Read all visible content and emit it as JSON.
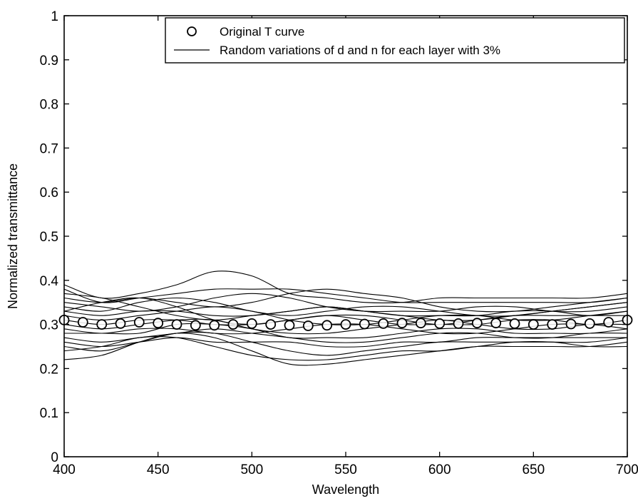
{
  "chart_data": {
    "type": "line",
    "title": "",
    "xlabel": "Wavelength",
    "ylabel": "Normalized transmittance",
    "xlim": [
      400,
      700
    ],
    "ylim": [
      0,
      1
    ],
    "xticks": [
      400,
      450,
      500,
      550,
      600,
      650,
      700
    ],
    "yticks": [
      0,
      0.1,
      0.2,
      0.3,
      0.4,
      0.5,
      0.6,
      0.7,
      0.8,
      0.9,
      1
    ],
    "xtick_labels": [
      "400",
      "450",
      "500",
      "550",
      "600",
      "650",
      "700"
    ],
    "ytick_labels": [
      "0",
      "0.1",
      "0.2",
      "0.3",
      "0.4",
      "0.5",
      "0.6",
      "0.7",
      "0.8",
      "0.9",
      "1"
    ],
    "grid": false,
    "legend_position": "top-right",
    "legend": [
      {
        "label": "Original T curve",
        "marker": "circle"
      },
      {
        "label": "Random variations of d and n for each layer with 3%",
        "marker": "line"
      }
    ],
    "x": [
      400,
      420,
      440,
      460,
      480,
      500,
      520,
      540,
      560,
      580,
      600,
      620,
      640,
      660,
      680,
      700
    ],
    "original": {
      "x": [
        400,
        410,
        420,
        430,
        440,
        450,
        460,
        470,
        480,
        490,
        500,
        510,
        520,
        530,
        540,
        550,
        560,
        570,
        580,
        590,
        600,
        610,
        620,
        630,
        640,
        650,
        660,
        670,
        680,
        690,
        700
      ],
      "values": [
        0.31,
        0.305,
        0.3,
        0.302,
        0.305,
        0.303,
        0.3,
        0.298,
        0.298,
        0.3,
        0.302,
        0.3,
        0.298,
        0.297,
        0.298,
        0.3,
        0.301,
        0.302,
        0.303,
        0.303,
        0.302,
        0.302,
        0.303,
        0.303,
        0.302,
        0.3,
        0.3,
        0.301,
        0.302,
        0.305,
        0.31
      ]
    },
    "variations": [
      [
        0.39,
        0.36,
        0.37,
        0.39,
        0.42,
        0.41,
        0.37,
        0.36,
        0.35,
        0.35,
        0.36,
        0.36,
        0.36,
        0.36,
        0.36,
        0.37
      ],
      [
        0.38,
        0.35,
        0.36,
        0.37,
        0.38,
        0.38,
        0.38,
        0.37,
        0.36,
        0.35,
        0.35,
        0.35,
        0.35,
        0.35,
        0.35,
        0.36
      ],
      [
        0.36,
        0.35,
        0.36,
        0.35,
        0.34,
        0.35,
        0.37,
        0.38,
        0.37,
        0.36,
        0.34,
        0.33,
        0.33,
        0.34,
        0.35,
        0.36
      ],
      [
        0.35,
        0.34,
        0.33,
        0.34,
        0.36,
        0.37,
        0.36,
        0.34,
        0.33,
        0.33,
        0.33,
        0.34,
        0.34,
        0.33,
        0.33,
        0.34
      ],
      [
        0.34,
        0.33,
        0.35,
        0.36,
        0.35,
        0.33,
        0.32,
        0.33,
        0.34,
        0.34,
        0.33,
        0.32,
        0.32,
        0.33,
        0.34,
        0.35
      ],
      [
        0.33,
        0.32,
        0.33,
        0.33,
        0.32,
        0.32,
        0.33,
        0.34,
        0.33,
        0.32,
        0.32,
        0.32,
        0.33,
        0.33,
        0.32,
        0.33
      ],
      [
        0.32,
        0.31,
        0.32,
        0.33,
        0.34,
        0.33,
        0.31,
        0.3,
        0.3,
        0.31,
        0.32,
        0.32,
        0.31,
        0.31,
        0.32,
        0.33
      ],
      [
        0.31,
        0.3,
        0.31,
        0.31,
        0.3,
        0.3,
        0.31,
        0.32,
        0.31,
        0.3,
        0.3,
        0.3,
        0.31,
        0.31,
        0.3,
        0.31
      ],
      [
        0.3,
        0.29,
        0.3,
        0.31,
        0.31,
        0.29,
        0.28,
        0.28,
        0.29,
        0.3,
        0.31,
        0.3,
        0.29,
        0.29,
        0.3,
        0.3
      ],
      [
        0.29,
        0.28,
        0.29,
        0.29,
        0.28,
        0.28,
        0.29,
        0.3,
        0.3,
        0.29,
        0.28,
        0.28,
        0.29,
        0.3,
        0.3,
        0.29
      ],
      [
        0.28,
        0.28,
        0.28,
        0.3,
        0.3,
        0.29,
        0.27,
        0.27,
        0.27,
        0.28,
        0.29,
        0.29,
        0.28,
        0.28,
        0.28,
        0.29
      ],
      [
        0.27,
        0.26,
        0.27,
        0.28,
        0.29,
        0.28,
        0.27,
        0.26,
        0.26,
        0.27,
        0.28,
        0.28,
        0.27,
        0.27,
        0.28,
        0.28
      ],
      [
        0.26,
        0.25,
        0.26,
        0.27,
        0.26,
        0.26,
        0.26,
        0.25,
        0.25,
        0.26,
        0.26,
        0.27,
        0.27,
        0.27,
        0.27,
        0.27
      ],
      [
        0.25,
        0.24,
        0.26,
        0.28,
        0.28,
        0.26,
        0.24,
        0.23,
        0.24,
        0.25,
        0.26,
        0.26,
        0.26,
        0.26,
        0.26,
        0.27
      ],
      [
        0.22,
        0.23,
        0.26,
        0.28,
        0.27,
        0.24,
        0.21,
        0.21,
        0.22,
        0.23,
        0.24,
        0.25,
        0.25,
        0.25,
        0.25,
        0.26
      ],
      [
        0.24,
        0.25,
        0.27,
        0.27,
        0.25,
        0.23,
        0.22,
        0.22,
        0.23,
        0.24,
        0.24,
        0.25,
        0.26,
        0.26,
        0.25,
        0.25
      ],
      [
        0.37,
        0.36,
        0.34,
        0.32,
        0.31,
        0.32,
        0.33,
        0.34,
        0.33,
        0.32,
        0.31,
        0.31,
        0.32,
        0.33,
        0.34,
        0.35
      ],
      [
        0.33,
        0.35,
        0.36,
        0.34,
        0.31,
        0.3,
        0.31,
        0.32,
        0.32,
        0.31,
        0.3,
        0.31,
        0.32,
        0.32,
        0.32,
        0.32
      ]
    ]
  }
}
